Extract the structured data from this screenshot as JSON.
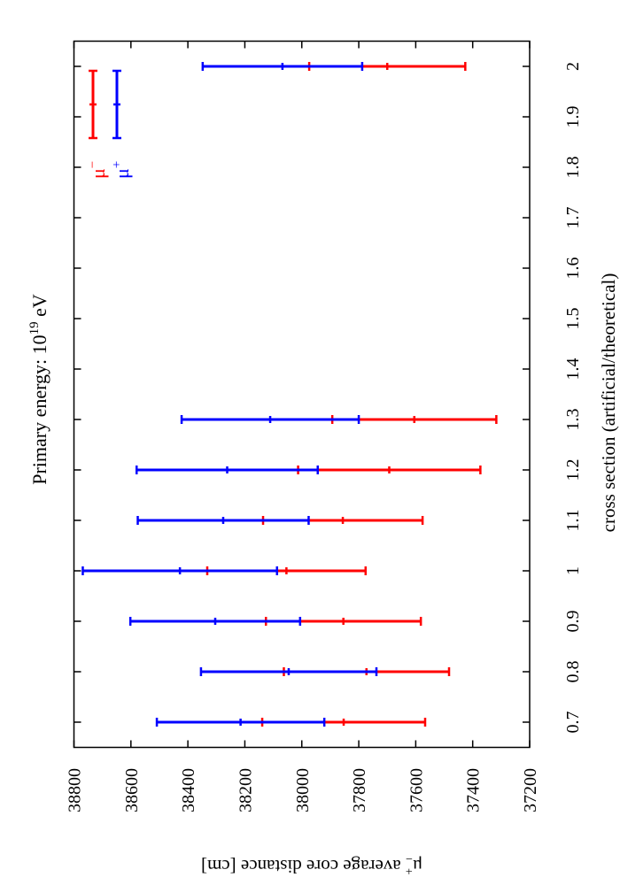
{
  "chart_data": {
    "type": "errorbar",
    "orientation": "rotated 90 degrees (landscape figure printed sideways)",
    "title": "Primary energy: 10",
    "title_exponent": "19",
    "title_unit": " eV",
    "xlabel": "cross section (artificial/theoretical)",
    "ylabel": "μ± average core distance [cm]",
    "ylabel_parts": {
      "mu": "μ",
      "sup": "+",
      "sub": "−",
      "rest": " average core distance [cm]"
    },
    "xlim": [
      0.65,
      2.05
    ],
    "ylim": [
      37200,
      38800
    ],
    "x_ticks": [
      "0.7",
      "0.8",
      "0.9",
      "1",
      "1.1",
      "1.2",
      "1.3",
      "1.4",
      "1.5",
      "1.6",
      "1.7",
      "1.8",
      "1.9",
      "2"
    ],
    "y_ticks": [
      "38800",
      "38600",
      "38400",
      "38200",
      "38000",
      "37800",
      "37600",
      "37400",
      "37200"
    ],
    "grid": false,
    "legend": "top-left",
    "series": [
      {
        "name": "μ−",
        "label_base": "μ",
        "label_sup": "−",
        "color": "#ff0000",
        "x": [
          0.7,
          0.8,
          0.9,
          1.0,
          1.1,
          1.2,
          1.3,
          2.0
        ],
        "y": [
          37853,
          37773,
          37854,
          38054,
          37856,
          37693,
          37605,
          37700
        ],
        "err": [
          286,
          290,
          272,
          278,
          280,
          320,
          288,
          274
        ]
      },
      {
        "name": "μ+",
        "label_base": "μ",
        "label_sup": "+",
        "color": "#0000ff",
        "x": [
          0.7,
          0.8,
          0.9,
          1.0,
          1.1,
          1.2,
          1.3,
          2.0
        ],
        "y": [
          38215,
          38046,
          38304,
          38428,
          38276,
          38262,
          38111,
          38068
        ],
        "err": [
          294,
          308,
          298,
          341,
          300,
          318,
          311,
          280
        ]
      }
    ]
  }
}
